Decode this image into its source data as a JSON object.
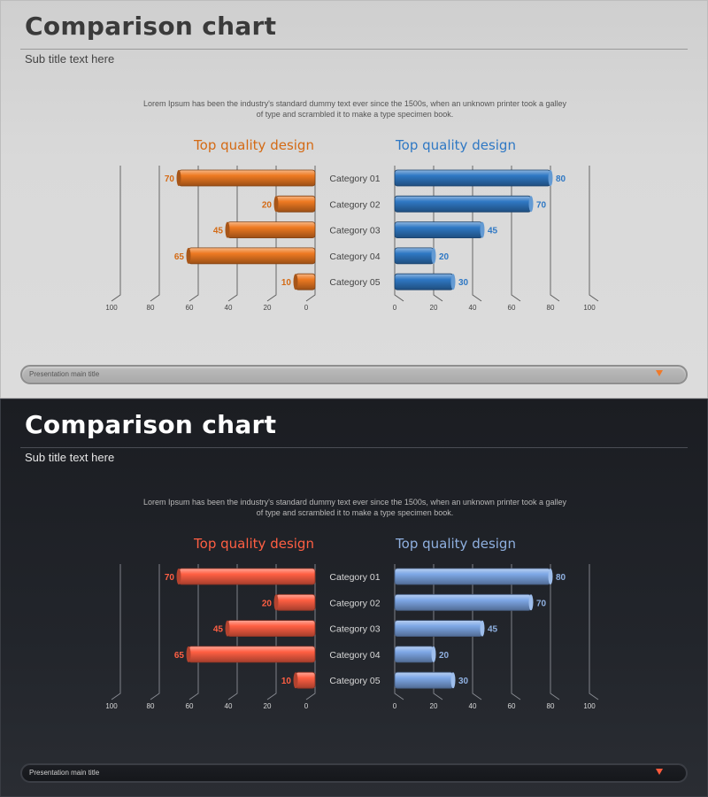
{
  "title": "Comparison chart",
  "subtitle": "Sub title text here",
  "description": "Lorem Ipsum has been the industry's standard dummy text ever since the 1500s, when an unknown printer took a galley of type and scrambled it to make a type specimen book.",
  "footer_label": "Presentation main title",
  "themes": {
    "light": {
      "left_color": "#ee7a22",
      "right_color": "#2f78c4",
      "left_label_color": "#d46a14",
      "right_label_color": "#2f78c4",
      "grid_color": "#5a5a5a",
      "text_color": "#444444"
    },
    "dark": {
      "left_color": "#ff5f43",
      "right_color": "#7ea8e6",
      "left_label_color": "#ff5f43",
      "right_label_color": "#8fb0e0",
      "grid_color": "#8a8d94",
      "text_color": "#d8d8d8"
    }
  },
  "chart_data": [
    {
      "type": "bar",
      "theme": "light",
      "categories": [
        "Category 01",
        "Category 02",
        "Category 03",
        "Category 04",
        "Category 05"
      ],
      "left": {
        "title": "Top quality design",
        "values": [
          70,
          20,
          45,
          65,
          10
        ],
        "ticks": [
          100,
          80,
          60,
          40,
          20,
          0
        ]
      },
      "right": {
        "title": "Top quality design",
        "values": [
          80,
          70,
          45,
          20,
          30
        ],
        "ticks": [
          0,
          20,
          40,
          60,
          80,
          100
        ]
      },
      "xlim": [
        0,
        100
      ]
    },
    {
      "type": "bar",
      "theme": "dark",
      "categories": [
        "Category 01",
        "Category 02",
        "Category 03",
        "Category 04",
        "Category 05"
      ],
      "left": {
        "title": "Top quality design",
        "values": [
          70,
          20,
          45,
          65,
          10
        ],
        "ticks": [
          100,
          80,
          60,
          40,
          20,
          0
        ]
      },
      "right": {
        "title": "Top quality design",
        "values": [
          80,
          70,
          45,
          20,
          30
        ],
        "ticks": [
          0,
          20,
          40,
          60,
          80,
          100
        ]
      },
      "xlim": [
        0,
        100
      ]
    }
  ]
}
